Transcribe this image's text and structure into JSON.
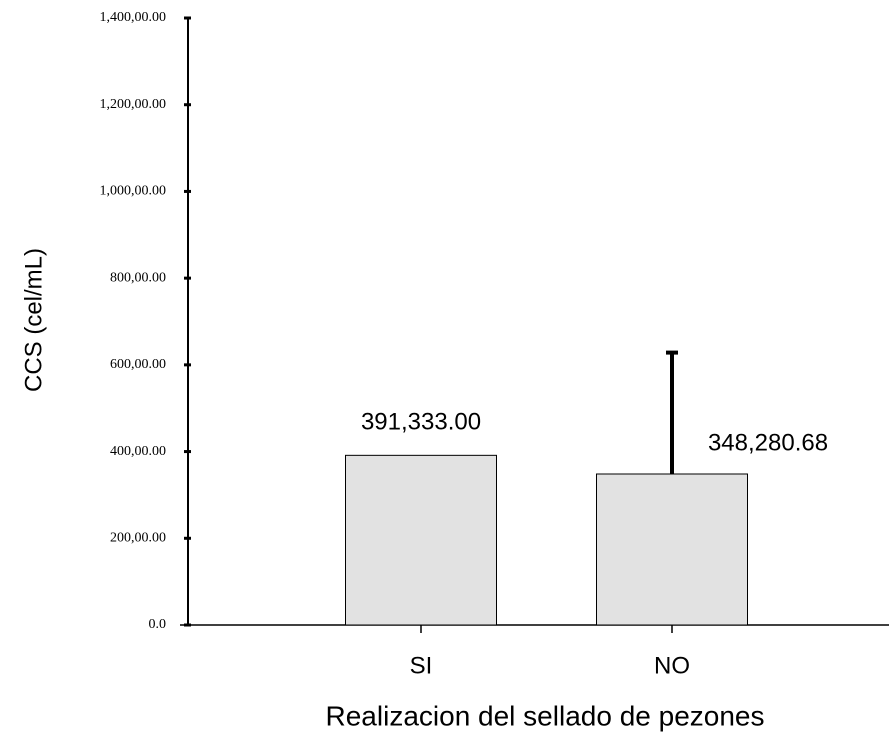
{
  "chart_data": {
    "type": "bar",
    "categories": [
      "SI",
      "NO"
    ],
    "values": [
      391333,
      348280.68
    ],
    "value_labels": [
      "391,333.00",
      "348,280.68"
    ],
    "errors": [
      null,
      280000
    ],
    "color": "#e2e2e2",
    "ylabel": "CCS (cel/mL)",
    "xlabel": "Realizacion del sellado de pezones",
    "ylim": [
      0,
      1400000
    ],
    "yticks": [
      {
        "value": 0,
        "label": "0.0"
      },
      {
        "value": 200000,
        "label": "200,00.00"
      },
      {
        "value": 400000,
        "label": "400,00.00"
      },
      {
        "value": 600000,
        "label": "600,00.00"
      },
      {
        "value": 800000,
        "label": "800,00.00"
      },
      {
        "value": 1000000,
        "label": "1,000,00.00"
      },
      {
        "value": 1200000,
        "label": "1,200,00.00"
      },
      {
        "value": 1400000,
        "label": "1,400,00.00"
      }
    ]
  }
}
